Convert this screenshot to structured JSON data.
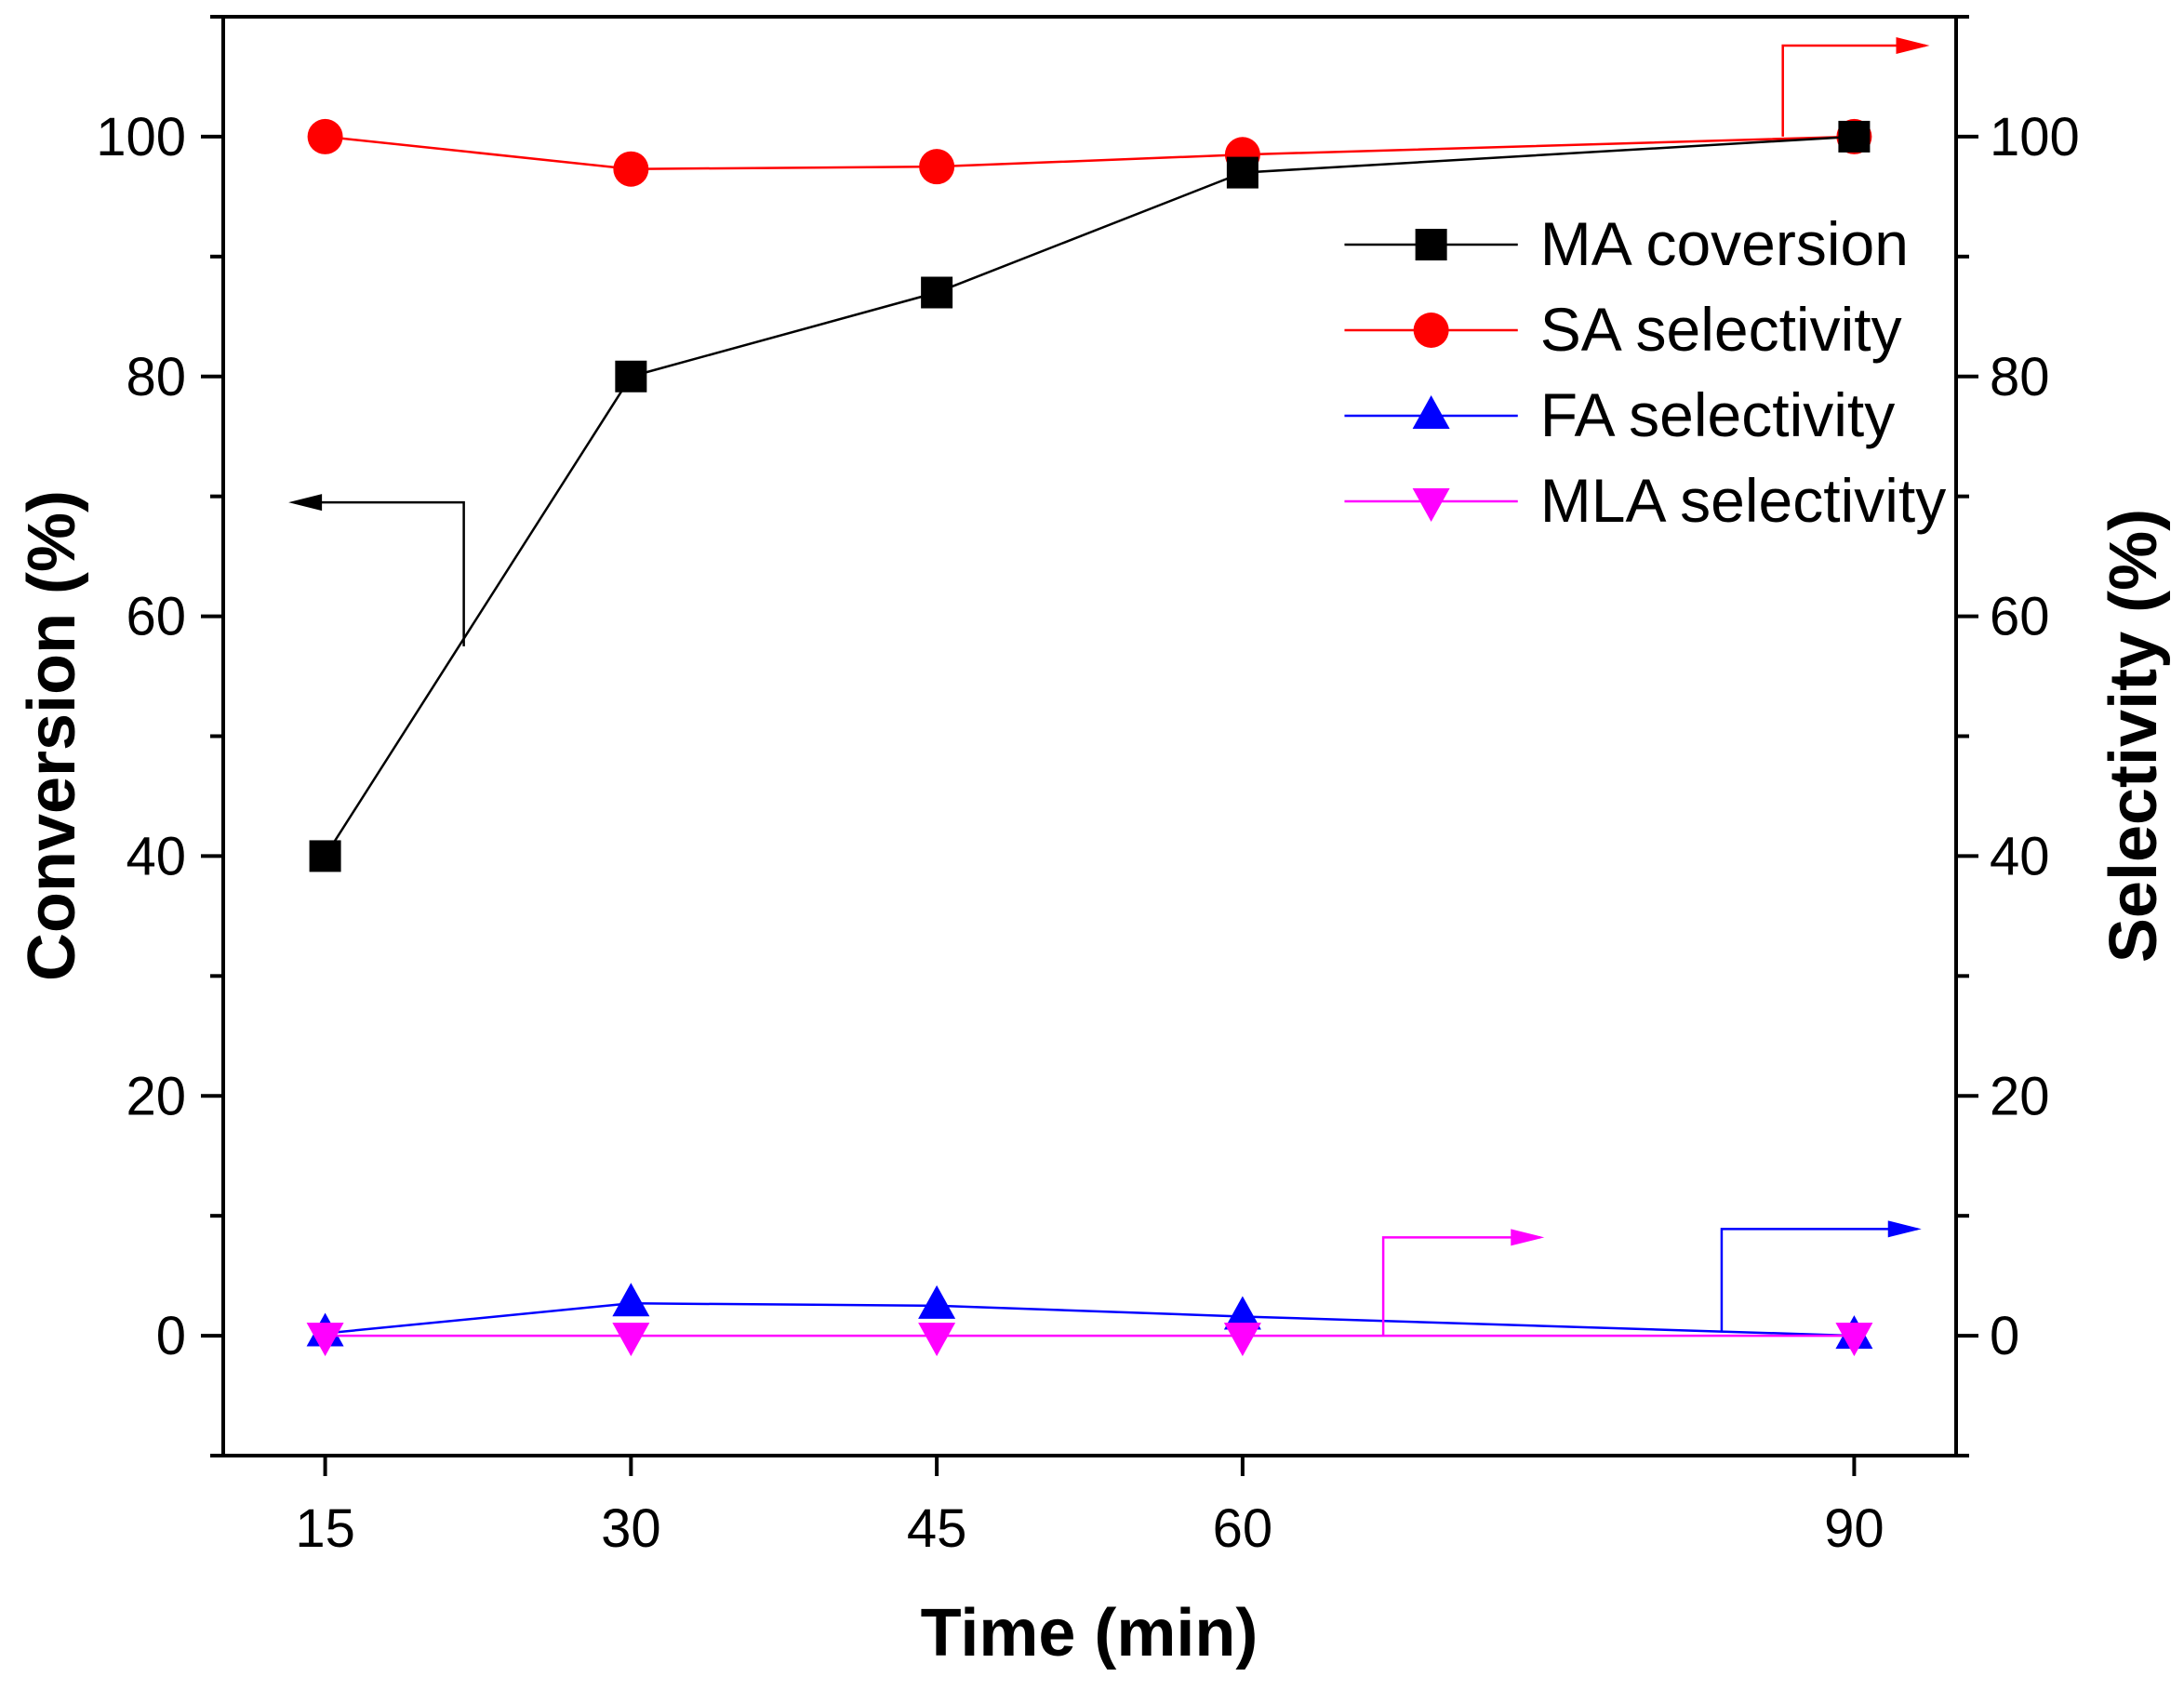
{
  "chart_data": {
    "type": "line",
    "x": [
      15,
      30,
      45,
      60,
      90
    ],
    "xticks": [
      15,
      30,
      45,
      60,
      90
    ],
    "xlim": [
      10,
      95
    ],
    "xlabel": "Time (min)",
    "ylabel_left": "Conversion (%)",
    "ylabel_right": "Selectivity (%)",
    "ylim_left": [
      -10,
      110
    ],
    "ylim_right": [
      -10,
      110
    ],
    "yticks_left": [
      0,
      20,
      40,
      60,
      80,
      100
    ],
    "yticks_right": [
      0,
      20,
      40,
      60,
      80,
      100
    ],
    "series": [
      {
        "name": "MA coversion",
        "axis": "left",
        "marker": "square",
        "color": "#000000",
        "values": [
          40,
          80,
          87,
          97,
          100
        ]
      },
      {
        "name": "SA selectivity",
        "axis": "right",
        "marker": "circle",
        "color": "#ff0000",
        "values": [
          100,
          97.3,
          97.5,
          98.5,
          100
        ]
      },
      {
        "name": "FA selectivity",
        "axis": "right",
        "marker": "triangle-up",
        "color": "#0000ff",
        "values": [
          0.2,
          2.7,
          2.5,
          1.6,
          0
        ]
      },
      {
        "name": "MLA selectivity",
        "axis": "right",
        "marker": "triangle-down",
        "color": "#ff00ff",
        "values": [
          0,
          0,
          0,
          0,
          0
        ]
      }
    ],
    "legend_position": "top-right",
    "annotations": [
      {
        "type": "arrow",
        "points_to": "left",
        "series": "MA coversion"
      },
      {
        "type": "arrow",
        "points_to": "right",
        "series": "SA selectivity"
      },
      {
        "type": "arrow",
        "points_to": "right",
        "series": "MLA selectivity"
      },
      {
        "type": "arrow",
        "points_to": "right",
        "series": "FA selectivity"
      }
    ]
  }
}
